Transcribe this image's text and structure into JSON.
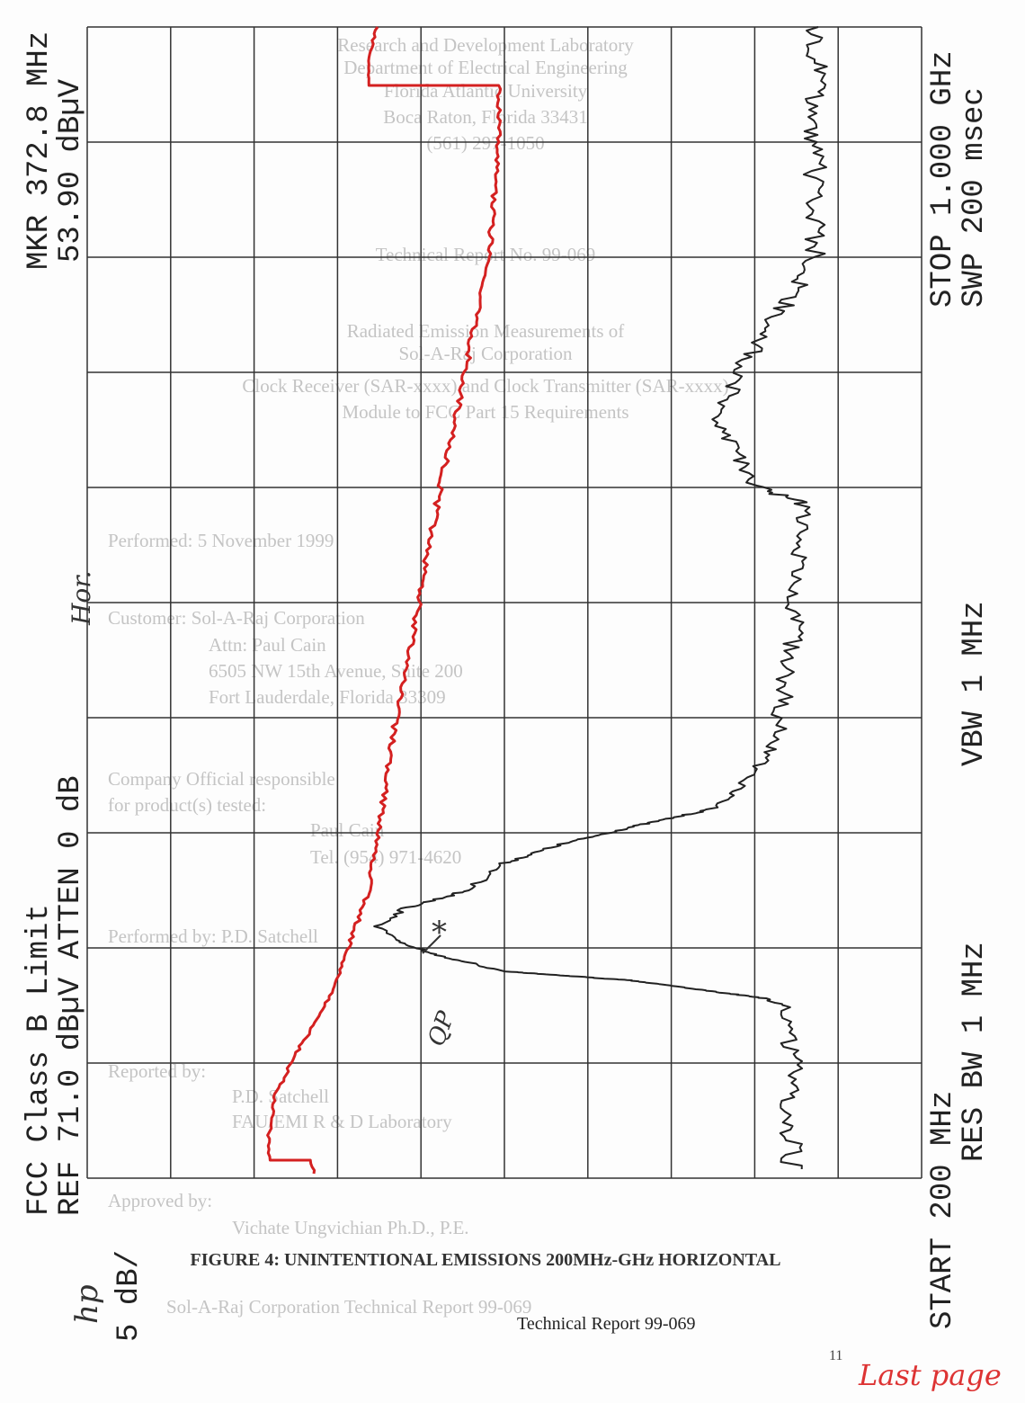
{
  "header_left": {
    "marker": "MKR 372.8 MHz",
    "marker_level": "53.90 dBµV",
    "limit_label": "FCC Class B Limit",
    "reference": "REF 71.0 dBµV ATTEN 0 dB",
    "scale": "5 dB/",
    "brand": "hp",
    "polarization": "Hor."
  },
  "header_right": {
    "stop": "STOP 1.000 GHz",
    "sweep": "SWP 200 msec",
    "vbw": "VBW 1 MHz",
    "start": "START 200 MHz",
    "rbw": "RES BW 1 MHz"
  },
  "annotation": {
    "qp": "QP",
    "marker": "*"
  },
  "caption": "FIGURE 4: UNINTENTIONAL EMISSIONS 200MHz-GHz HORIZONTAL",
  "footer": {
    "report": "Technical Report 99-069",
    "page": "11",
    "note": "Last page"
  },
  "bleed_through": [
    "Research and Development Laboratory",
    "Department of Electrical Engineering",
    "Florida Atlantic University",
    "Boca Raton, Florida 33431",
    "(561) 297-1050",
    "Technical Report No. 99-069",
    "Radiated Emission Measurements of",
    "Sol-A-Raj Corporation",
    "Clock Receiver (SAR-xxxx) and Clock Transmitter (SAR-xxxx)",
    "Module to FCC Part 15 Requirements",
    "Performed:   5 November 1999",
    "Customer: Sol-A-Raj Corporation",
    "Attn:  Paul Cain",
    "6505 NW 15th Avenue, Suite 200",
    "Fort Lauderdale, Florida 33309",
    "Company Official responsible",
    "for product(s) tested:",
    "Paul Cain",
    "Tel. (954) 971-4620",
    "Performed by:  P.D. Satchell",
    "Reported by:",
    "P.D. Satchell",
    "FAU/EMI R & D Laboratory",
    "Approved by:",
    "Vichate Ungvichian Ph.D., P.E.",
    "Sol-A-Raj Corporation Technical Report 99-069"
  ]
}
